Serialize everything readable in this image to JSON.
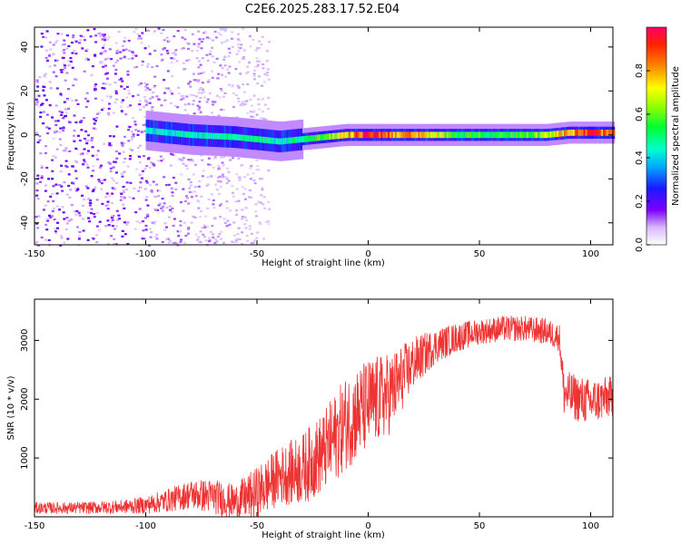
{
  "figure": {
    "title": "C2E6.2025.283.17.52.E04"
  },
  "chart_data": [
    {
      "type": "heatmap",
      "title": "C2E6.2025.283.17.52.E04",
      "xlabel": "Height of straight line (km)",
      "ylabel": "Frequency (Hz)",
      "xlim": [
        -150,
        110
      ],
      "ylim": [
        -50,
        49
      ],
      "xticks": [
        -150,
        -100,
        -50,
        0,
        50,
        100
      ],
      "yticks": [
        -40,
        -20,
        0,
        20,
        40
      ],
      "xtick_labels": [
        "-150",
        "-100",
        "-50",
        "0",
        "50",
        "100"
      ],
      "ytick_labels": [
        "-40",
        "-20",
        "0",
        "20",
        "40"
      ],
      "ridge": {
        "description": "Spectral power concentrated near 0 Hz",
        "x": [
          -100,
          -80,
          -60,
          -50,
          -40,
          -30,
          -20,
          -10,
          0,
          10,
          20,
          30,
          40,
          50,
          60,
          70,
          80,
          90,
          100,
          110
        ],
        "frequency": [
          2,
          0,
          -1,
          -2,
          -3,
          -2,
          -1,
          0,
          0,
          0,
          0,
          0,
          0,
          0,
          0,
          0,
          0,
          1,
          1,
          1
        ],
        "amplitude": [
          0.45,
          0.45,
          0.5,
          0.5,
          0.45,
          0.5,
          0.6,
          0.75,
          1.0,
          0.85,
          0.8,
          0.7,
          0.55,
          0.55,
          0.55,
          0.6,
          0.7,
          0.8,
          0.95,
          0.8
        ]
      },
      "noise_region": {
        "x_from": -150,
        "x_to": -45,
        "amplitude_range": [
          0.0,
          0.15
        ]
      },
      "colorbar": {
        "label": "Normalized spectral amplitude",
        "range": [
          0.0,
          1.0
        ],
        "ticks": [
          0.0,
          0.2,
          0.4,
          0.6,
          0.8
        ],
        "tick_labels": [
          "0.0",
          "0.2",
          "0.4",
          "0.6",
          "0.8"
        ]
      }
    },
    {
      "type": "line",
      "xlabel": "Height of straight line (km)",
      "ylabel": "SNR (10 * v/v)",
      "xlim": [
        -150,
        110
      ],
      "ylim": [
        0,
        3700
      ],
      "xticks": [
        -150,
        -100,
        -50,
        0,
        50,
        100
      ],
      "yticks": [
        1000,
        2000,
        3000
      ],
      "xtick_labels": [
        "-150",
        "-100",
        "-50",
        "0",
        "50",
        "100"
      ],
      "ytick_labels": [
        "1000",
        "2000",
        "3000"
      ],
      "series": [
        {
          "name": "SNR",
          "color": "#ee3333",
          "x": [
            -150,
            -140,
            -130,
            -120,
            -110,
            -100,
            -90,
            -80,
            -70,
            -60,
            -50,
            -40,
            -30,
            -20,
            -10,
            0,
            10,
            20,
            30,
            40,
            50,
            60,
            70,
            80,
            86,
            88,
            95,
            100,
            110
          ],
          "center": [
            150,
            150,
            150,
            160,
            170,
            200,
            280,
            380,
            350,
            250,
            400,
            700,
            800,
            1100,
            1600,
            1900,
            2100,
            2600,
            2900,
            3050,
            3150,
            3200,
            3200,
            3150,
            3050,
            2100,
            2000,
            1950,
            2050
          ],
          "spread": [
            100,
            100,
            100,
            110,
            120,
            150,
            200,
            250,
            300,
            300,
            450,
            500,
            600,
            700,
            800,
            800,
            700,
            450,
            300,
            250,
            220,
            220,
            220,
            230,
            230,
            400,
            400,
            400,
            350
          ]
        }
      ]
    }
  ]
}
